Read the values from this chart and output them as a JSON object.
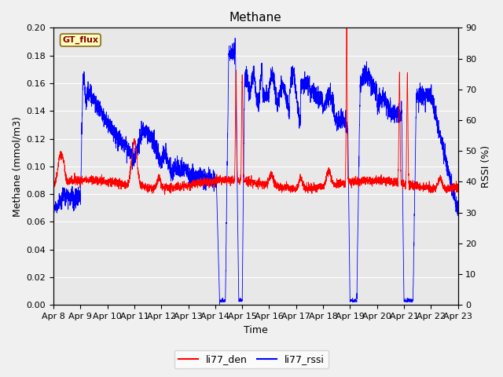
{
  "title": "Methane",
  "ylabel_left": "Methane (mmol/m3)",
  "ylabel_right": "RSSI (%)",
  "xlabel": "Time",
  "ylim_left": [
    0.0,
    0.2
  ],
  "ylim_right": [
    0,
    90
  ],
  "legend_labels": [
    "li77_den",
    "li77_rssi"
  ],
  "gt_flux_label": "GT_flux",
  "plot_bg_color": "#e8e8e8",
  "fig_bg_color": "#f0f0f0",
  "x_tick_labels": [
    "Apr 8",
    "Apr 9",
    "Apr 10",
    "Apr 11",
    "Apr 12",
    "Apr 13",
    "Apr 14",
    "Apr 15",
    "Apr 16",
    "Apr 17",
    "Apr 18",
    "Apr 19",
    "Apr 20",
    "Apr 21",
    "Apr 22",
    "Apr 23"
  ],
  "x_tick_positions": [
    0,
    24,
    48,
    72,
    96,
    120,
    144,
    168,
    192,
    216,
    240,
    264,
    288,
    312,
    336,
    360
  ],
  "left_yticks": [
    0.0,
    0.02,
    0.04,
    0.06,
    0.08,
    0.1,
    0.12,
    0.14,
    0.16,
    0.18,
    0.2
  ],
  "right_yticks": [
    0,
    10,
    20,
    30,
    40,
    50,
    60,
    70,
    80,
    90
  ],
  "title_fontsize": 11,
  "axis_label_fontsize": 9,
  "tick_fontsize": 8
}
